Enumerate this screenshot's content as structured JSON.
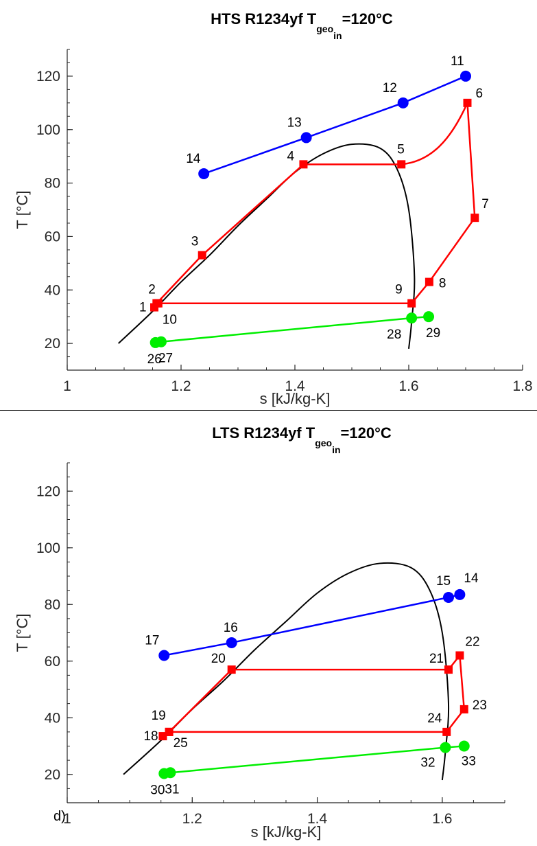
{
  "chart_data": [
    {
      "type": "line",
      "title": "HTS R1234yf   T",
      "title_sub": "geo",
      "title_subsub": "in",
      "title_tail": "=120°C",
      "xlabel": "s [kJ/kg-K]",
      "ylabel": "T [°C]",
      "xlim": [
        1,
        1.8
      ],
      "ylim": [
        10,
        130
      ],
      "xticks": [
        1,
        1.2,
        1.4,
        1.6,
        1.8
      ],
      "xtick_labels": [
        "1",
        "1.2",
        "1.4",
        "1.6",
        "1.8"
      ],
      "yticks": [
        20,
        40,
        60,
        80,
        100,
        120
      ],
      "ytick_labels": [
        "20",
        "40",
        "60",
        "80",
        "100",
        "120"
      ],
      "grid": false,
      "dome": {
        "color": "#000000",
        "x": [
          1.09,
          1.15,
          1.2,
          1.25,
          1.3,
          1.35,
          1.4,
          1.45,
          1.5,
          1.55,
          1.58,
          1.6,
          1.61,
          1.605,
          1.6
        ],
        "y": [
          20,
          32,
          43,
          53,
          64,
          74,
          84,
          91,
          94.5,
          93,
          85,
          70,
          45,
          28,
          18
        ]
      },
      "series": [
        {
          "color": "#0000ff",
          "marker": "circle",
          "x": [
            1.24,
            1.42,
            1.59,
            1.7
          ],
          "y": [
            83.5,
            97,
            110,
            120
          ],
          "labels": [
            "14",
            "13",
            "12",
            "11"
          ]
        },
        {
          "color": "#ff0000",
          "marker": "square",
          "x": [
            1.153,
            1.157,
            1.237,
            1.415,
            1.587,
            1.703,
            1.716,
            1.636,
            1.605,
            1.16
          ],
          "y": [
            33.5,
            35,
            53,
            87,
            87,
            110,
            67,
            43,
            35,
            35
          ],
          "labels": [
            "1",
            "2",
            "3",
            "4",
            "5",
            "6",
            "7",
            "8",
            "9",
            "10"
          ],
          "closed": true,
          "curved_5_6": true
        },
        {
          "color": "#00ee00",
          "marker": "circle",
          "x": [
            1.155,
            1.165,
            1.605,
            1.635
          ],
          "y": [
            20.3,
            20.6,
            29.5,
            30
          ],
          "labels": [
            "26",
            "27",
            "28",
            "29"
          ]
        }
      ]
    },
    {
      "type": "line",
      "title": "LTS R1234yf   T",
      "title_sub": "geo",
      "title_subsub": "in",
      "title_tail": "=120°C",
      "xlabel": "s [kJ/kg-K]",
      "ylabel": "T [°C]",
      "xlim": [
        1,
        1.7
      ],
      "ylim": [
        10,
        130
      ],
      "xticks": [
        1,
        1.2,
        1.4,
        1.6
      ],
      "xtick_labels": [
        "1",
        "1.2",
        "1.4",
        "1.6"
      ],
      "yticks": [
        20,
        40,
        60,
        80,
        100,
        120
      ],
      "ytick_labels": [
        "20",
        "40",
        "60",
        "80",
        "100",
        "120"
      ],
      "grid": false,
      "panel_label": "d)",
      "dome": {
        "color": "#000000",
        "x": [
          1.09,
          1.15,
          1.2,
          1.25,
          1.3,
          1.35,
          1.4,
          1.45,
          1.5,
          1.55,
          1.58,
          1.6,
          1.61,
          1.605,
          1.6
        ],
        "y": [
          20,
          32,
          43,
          53,
          64,
          74,
          84,
          91,
          94.5,
          93,
          85,
          70,
          45,
          28,
          18
        ]
      },
      "series": [
        {
          "color": "#0000ff",
          "marker": "circle",
          "x": [
            1.155,
            1.263,
            1.61,
            1.628
          ],
          "y": [
            62,
            66.5,
            82.5,
            83.5
          ],
          "labels": [
            "17",
            "16",
            "15",
            "14"
          ]
        },
        {
          "color": "#ff0000",
          "marker": "square",
          "x": [
            1.153,
            1.163,
            1.263,
            1.61,
            1.628,
            1.635,
            1.607,
            1.163
          ],
          "y": [
            33.5,
            35,
            57,
            57,
            62,
            43,
            35,
            35
          ],
          "labels": [
            "18",
            "19",
            "20",
            "21",
            "22",
            "23",
            "24",
            "25"
          ],
          "closed": true
        },
        {
          "color": "#00ee00",
          "marker": "circle",
          "x": [
            1.155,
            1.165,
            1.605,
            1.635
          ],
          "y": [
            20.3,
            20.6,
            29.5,
            30
          ],
          "labels": [
            "30",
            "31",
            "32",
            "33"
          ]
        }
      ]
    }
  ]
}
